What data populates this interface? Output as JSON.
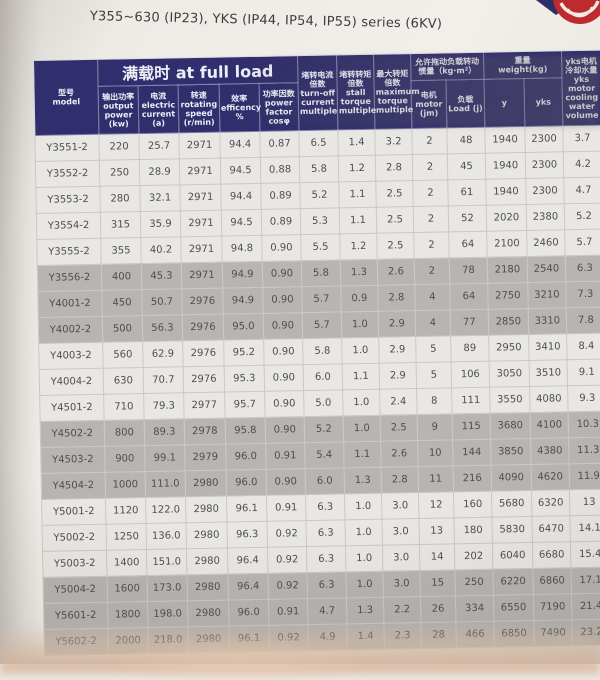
{
  "page": {
    "title": "Y355~630 (IP23), YKS (IP44, IP54, IP55) series (6KV)"
  },
  "colors": {
    "header_navy": "#302e6c",
    "row_light": "#e9e7e3",
    "row_gray": "#b7b4b1",
    "logo_red": "#bf2a2f"
  },
  "table": {
    "header": {
      "model": {
        "zh": "型号",
        "en": "model"
      },
      "full_load_group": "满载时 at full load",
      "full_load_cols": [
        {
          "zh": "输出功率",
          "en": "output power (kw)"
        },
        {
          "zh": "电流",
          "en": "electric current (a)"
        },
        {
          "zh": "转速",
          "en": "rotating speed (r/min)"
        },
        {
          "zh": "效率",
          "en": "efficency %"
        },
        {
          "zh": "功率因数",
          "en": "power factor cosφ"
        }
      ],
      "turnoff": {
        "zh": "堵转电流倍数",
        "en": "turn-off current multiple"
      },
      "stall": {
        "zh": "堵转转矩倍数",
        "en": "stall torque multiple"
      },
      "max_torque": {
        "zh": "最大转矩倍数",
        "en": "maximum torque multiple"
      },
      "inertia_group": {
        "line1": "允许拖动负载转动",
        "line2": "惯量（kg·m²）"
      },
      "inertia_cols": [
        {
          "zh": "电机",
          "en": "motor (jm)"
        },
        {
          "zh": "负载",
          "en": "Load (j)"
        }
      ],
      "weight_group": {
        "zh": "重量",
        "en": "weight(kg)"
      },
      "weight_cols": [
        "y",
        "yks"
      ],
      "cooling": {
        "zh1": "yks电机",
        "zh2": "冷却水量",
        "en": "yks motor cooling water volume"
      }
    },
    "rows": [
      {
        "shade": "light",
        "cells": [
          "Y3551-2",
          "220",
          "25.7",
          "2971",
          "94.4",
          "0.87",
          "6.5",
          "1.4",
          "3.2",
          "2",
          "48",
          "1940",
          "2300",
          "3.7"
        ]
      },
      {
        "shade": "light",
        "cells": [
          "Y3552-2",
          "250",
          "28.9",
          "2971",
          "94.5",
          "0.88",
          "5.8",
          "1.2",
          "2.8",
          "2",
          "45",
          "1940",
          "2300",
          "4.2"
        ]
      },
      {
        "shade": "light",
        "cells": [
          "Y3553-2",
          "280",
          "32.1",
          "2971",
          "94.4",
          "0.89",
          "5.2",
          "1.1",
          "2.5",
          "2",
          "61",
          "1940",
          "2300",
          "4.7"
        ]
      },
      {
        "shade": "light",
        "cells": [
          "Y3554-2",
          "315",
          "35.9",
          "2971",
          "94.5",
          "0.89",
          "5.3",
          "1.1",
          "2.5",
          "2",
          "52",
          "2020",
          "2380",
          "5.2"
        ]
      },
      {
        "shade": "light",
        "cells": [
          "Y3555-2",
          "355",
          "40.2",
          "2971",
          "94.8",
          "0.90",
          "5.5",
          "1.2",
          "2.5",
          "2",
          "64",
          "2100",
          "2460",
          "5.7"
        ]
      },
      {
        "shade": "gray",
        "cells": [
          "Y3556-2",
          "400",
          "45.3",
          "2971",
          "94.9",
          "0.90",
          "5.8",
          "1.3",
          "2.6",
          "2",
          "78",
          "2180",
          "2540",
          "6.3"
        ]
      },
      {
        "shade": "gray",
        "cells": [
          "Y4001-2",
          "450",
          "50.7",
          "2976",
          "94.9",
          "0.90",
          "5.7",
          "0.9",
          "2.8",
          "4",
          "64",
          "2750",
          "3210",
          "7.3"
        ]
      },
      {
        "shade": "gray",
        "cells": [
          "Y4002-2",
          "500",
          "56.3",
          "2976",
          "95.0",
          "0.90",
          "5.7",
          "1.0",
          "2.9",
          "4",
          "77",
          "2850",
          "3310",
          "7.8"
        ]
      },
      {
        "shade": "light",
        "cells": [
          "Y4003-2",
          "560",
          "62.9",
          "2976",
          "95.2",
          "0.90",
          "5.8",
          "1.0",
          "2.9",
          "5",
          "89",
          "2950",
          "3410",
          "8.4"
        ]
      },
      {
        "shade": "light",
        "cells": [
          "Y4004-2",
          "630",
          "70.7",
          "2976",
          "95.3",
          "0.90",
          "6.0",
          "1.1",
          "2.9",
          "5",
          "106",
          "3050",
          "3510",
          "9.1"
        ]
      },
      {
        "shade": "light",
        "cells": [
          "Y4501-2",
          "710",
          "79.3",
          "2977",
          "95.7",
          "0.90",
          "5.0",
          "1.0",
          "2.4",
          "8",
          "111",
          "3550",
          "4080",
          "9.3"
        ]
      },
      {
        "shade": "gray",
        "cells": [
          "Y4502-2",
          "800",
          "89.3",
          "2978",
          "95.8",
          "0.90",
          "5.2",
          "1.0",
          "2.5",
          "9",
          "115",
          "3680",
          "4100",
          "10.3"
        ]
      },
      {
        "shade": "gray",
        "cells": [
          "Y4503-2",
          "900",
          "99.1",
          "2979",
          "96.0",
          "0.91",
          "5.4",
          "1.1",
          "2.6",
          "10",
          "144",
          "3850",
          "4380",
          "11.3"
        ]
      },
      {
        "shade": "gray",
        "cells": [
          "Y4504-2",
          "1000",
          "111.0",
          "2980",
          "96.0",
          "0.90",
          "6.0",
          "1.3",
          "2.8",
          "11",
          "216",
          "4090",
          "4620",
          "11.9"
        ]
      },
      {
        "shade": "light",
        "cells": [
          "Y5001-2",
          "1120",
          "122.0",
          "2980",
          "96.1",
          "0.91",
          "6.3",
          "1.0",
          "3.0",
          "12",
          "160",
          "5680",
          "6320",
          "13"
        ]
      },
      {
        "shade": "light",
        "cells": [
          "Y5002-2",
          "1250",
          "136.0",
          "2980",
          "96.3",
          "0.92",
          "6.3",
          "1.0",
          "3.0",
          "13",
          "180",
          "5830",
          "6470",
          "14.1"
        ]
      },
      {
        "shade": "light",
        "cells": [
          "Y5003-2",
          "1400",
          "151.0",
          "2980",
          "96.4",
          "0.92",
          "6.3",
          "1.0",
          "3.0",
          "14",
          "202",
          "6040",
          "6680",
          "15.4"
        ]
      },
      {
        "shade": "gray",
        "cells": [
          "Y5004-2",
          "1600",
          "173.0",
          "2980",
          "96.4",
          "0.92",
          "6.3",
          "1.0",
          "3.0",
          "15",
          "250",
          "6220",
          "6860",
          "17.1"
        ]
      },
      {
        "shade": "gray",
        "cells": [
          "Y5601-2",
          "1800",
          "198.0",
          "2980",
          "96.0",
          "0.91",
          "4.7",
          "1.3",
          "2.2",
          "26",
          "334",
          "6550",
          "7190",
          "21.4"
        ]
      },
      {
        "shade": "gray",
        "cells": [
          "Y5602-2",
          "2000",
          "218.0",
          "2980",
          "96.1",
          "0.92",
          "4.9",
          "1.4",
          "2.3",
          "28",
          "466",
          "6850",
          "7490",
          "23.2"
        ]
      }
    ]
  }
}
